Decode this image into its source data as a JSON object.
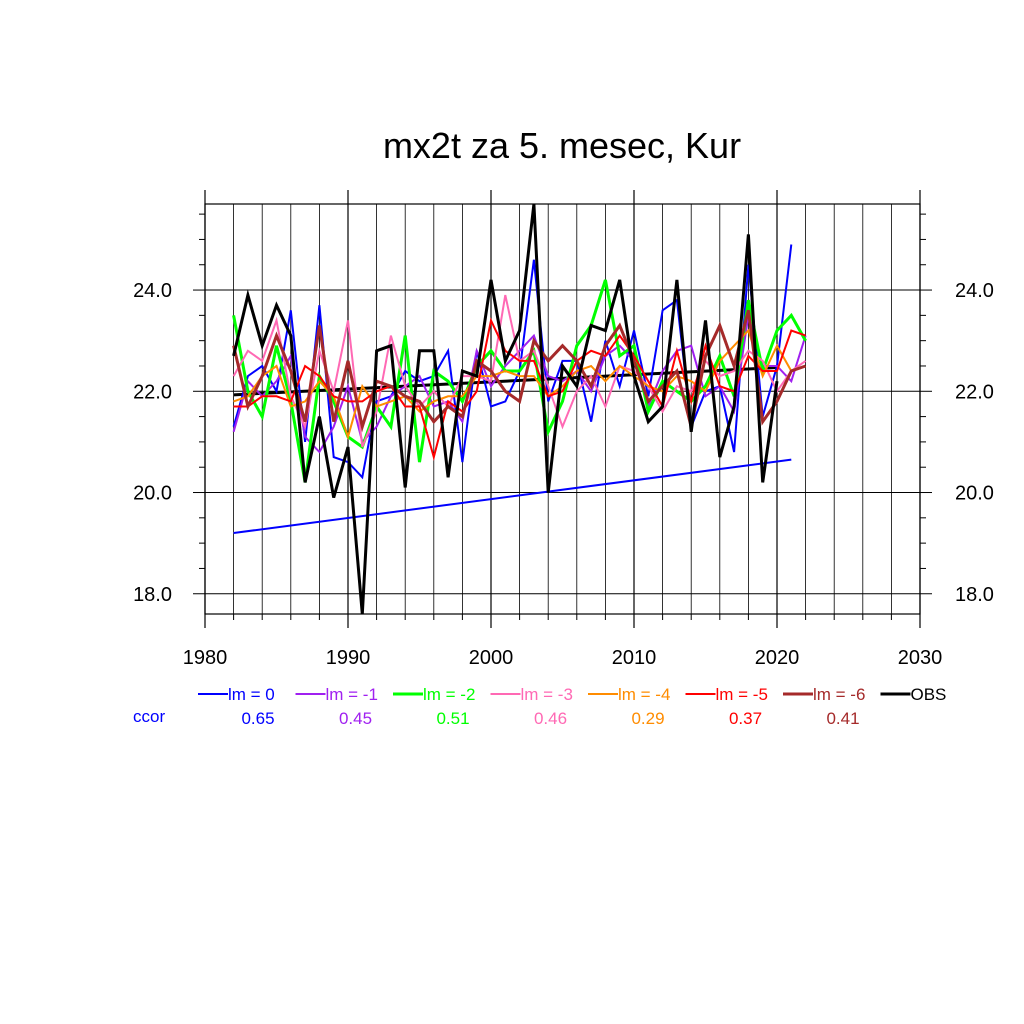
{
  "chart_data": {
    "type": "line",
    "title": "mx2t za 5. mesec, Kur",
    "xlabel": "",
    "ylabel": "",
    "xlim": [
      1980,
      2030
    ],
    "ylim": [
      17.6,
      25.7
    ],
    "x_ticks": [
      1980,
      1990,
      2000,
      2010,
      2020,
      2030
    ],
    "x_tick_labels": [
      "1980",
      "1990",
      "2000",
      "2010",
      "2020",
      "2030"
    ],
    "y_ticks": [
      18,
      20,
      22,
      24
    ],
    "y_tick_labels": [
      "18.0",
      "20.0",
      "22.0",
      "24.0"
    ],
    "grid": true,
    "legend_position": "bottom",
    "ccor_label": "ccor",
    "x": [
      1982,
      1983,
      1984,
      1985,
      1986,
      1987,
      1988,
      1989,
      1990,
      1991,
      1992,
      1993,
      1994,
      1995,
      1996,
      1997,
      1998,
      1999,
      2000,
      2001,
      2002,
      2003,
      2004,
      2005,
      2006,
      2007,
      2008,
      2009,
      2010,
      2011,
      2012,
      2013,
      2014,
      2015,
      2016,
      2017,
      2018,
      2019,
      2020,
      2021,
      2022
    ],
    "series": [
      {
        "name": "lm = 0",
        "color": "#0000ff",
        "width": 2,
        "ccor": "0.65",
        "values": [
          21.3,
          22.3,
          22.5,
          22.0,
          23.6,
          21.0,
          23.7,
          20.7,
          20.6,
          20.3,
          21.8,
          21.9,
          22.4,
          22.2,
          22.3,
          22.8,
          20.6,
          22.8,
          21.7,
          21.8,
          22.4,
          24.6,
          21.8,
          22.6,
          22.6,
          21.4,
          23.0,
          22.1,
          23.2,
          21.9,
          23.6,
          23.8,
          21.3,
          22.0,
          22.1,
          20.8,
          24.5,
          21.5,
          22.5,
          24.9,
          null
        ]
      },
      {
        "name": "lm = -1",
        "color": "#a020f0",
        "width": 2,
        "ccor": "0.45",
        "values": [
          21.2,
          22.2,
          21.9,
          22.2,
          22.7,
          21.1,
          20.8,
          21.3,
          22.1,
          21.0,
          21.3,
          21.9,
          22.1,
          22.3,
          21.7,
          21.8,
          21.4,
          22.8,
          22.1,
          22.5,
          22.8,
          23.1,
          22.3,
          22.2,
          22.4,
          22.0,
          22.7,
          22.9,
          22.6,
          21.7,
          22.4,
          22.8,
          22.9,
          21.9,
          22.1,
          21.6,
          23.5,
          22.5,
          22.5,
          22.2,
          23.1
        ]
      },
      {
        "name": "lm = -2",
        "color": "#00ff00",
        "width": 3,
        "ccor": "0.51",
        "values": [
          23.5,
          22.0,
          21.5,
          22.9,
          21.8,
          20.2,
          22.3,
          21.8,
          21.1,
          20.9,
          21.7,
          21.3,
          23.1,
          20.6,
          22.4,
          22.2,
          21.8,
          22.5,
          22.8,
          22.4,
          22.4,
          22.8,
          21.2,
          21.8,
          22.9,
          23.3,
          24.2,
          22.7,
          22.9,
          21.6,
          22.2,
          22.0,
          21.8,
          22.1,
          22.7,
          21.9,
          23.8,
          22.4,
          23.2,
          23.5,
          23.0
        ]
      },
      {
        "name": "lm = -3",
        "color": "#ff69b4",
        "width": 2,
        "ccor": "0.46",
        "values": [
          22.3,
          22.8,
          22.6,
          23.4,
          21.9,
          21.3,
          22.8,
          22.0,
          23.4,
          20.9,
          21.6,
          23.1,
          22.1,
          21.7,
          22.0,
          21.7,
          22.3,
          22.3,
          22.2,
          23.9,
          22.6,
          22.8,
          22.1,
          21.3,
          22.0,
          22.3,
          21.7,
          22.5,
          22.4,
          22.1,
          21.6,
          22.1,
          22.0,
          22.6,
          22.3,
          22.4,
          22.8,
          22.6,
          22.0,
          22.4,
          22.6
        ]
      },
      {
        "name": "lm = -4",
        "color": "#ff8c00",
        "width": 2,
        "ccor": "0.29",
        "values": [
          21.8,
          21.9,
          22.3,
          22.5,
          21.7,
          21.8,
          22.2,
          21.9,
          21.1,
          22.1,
          21.7,
          21.8,
          21.9,
          21.6,
          21.8,
          21.9,
          21.9,
          22.3,
          22.3,
          22.4,
          22.3,
          22.3,
          21.9,
          22.1,
          22.4,
          22.5,
          22.2,
          22.5,
          22.3,
          22.1,
          22.0,
          22.3,
          22.2,
          22.0,
          22.6,
          22.9,
          23.2,
          22.3,
          22.9,
          22.4,
          22.5
        ]
      },
      {
        "name": "lm = -5",
        "color": "#ff0000",
        "width": 2,
        "ccor": "0.37",
        "values": [
          21.7,
          21.7,
          21.9,
          21.9,
          21.8,
          22.5,
          22.3,
          21.9,
          21.8,
          21.8,
          22.0,
          22.1,
          21.7,
          21.7,
          20.7,
          21.8,
          21.6,
          22.0,
          23.4,
          22.8,
          22.6,
          22.6,
          21.9,
          22.0,
          22.6,
          22.8,
          22.7,
          23.1,
          22.7,
          22.2,
          21.7,
          22.8,
          21.8,
          22.9,
          22.1,
          22.0,
          22.7,
          22.4,
          22.4,
          23.2,
          23.1
        ]
      },
      {
        "name": "lm = -6",
        "color": "#a52a2a",
        "width": 3,
        "ccor": "0.41",
        "values": [
          22.9,
          21.7,
          22.3,
          23.1,
          22.4,
          21.4,
          23.3,
          21.4,
          22.6,
          21.3,
          22.2,
          22.1,
          21.9,
          21.8,
          21.4,
          21.7,
          21.5,
          22.6,
          22.4,
          22.0,
          21.8,
          23.0,
          22.6,
          22.9,
          22.6,
          22.1,
          22.9,
          23.3,
          22.6,
          21.8,
          22.1,
          22.4,
          21.3,
          22.7,
          23.3,
          22.5,
          23.6,
          21.4,
          21.8,
          22.4,
          22.5
        ]
      },
      {
        "name": "OBS",
        "color": "#000000",
        "width": 3,
        "ccor": "",
        "values": [
          22.7,
          23.9,
          22.9,
          23.7,
          23.1,
          20.2,
          21.5,
          19.9,
          20.9,
          17.6,
          22.8,
          22.9,
          20.1,
          22.8,
          22.8,
          20.3,
          22.4,
          22.3,
          24.2,
          22.6,
          23.2,
          25.7,
          20.0,
          22.5,
          22.1,
          23.3,
          23.2,
          24.2,
          22.3,
          21.4,
          21.7,
          24.2,
          21.2,
          23.4,
          20.7,
          21.7,
          25.1,
          20.2,
          22.2,
          null,
          null
        ]
      }
    ],
    "trend_lines": [
      {
        "color": "#0000ff",
        "width": 2,
        "x": [
          1982,
          2021
        ],
        "y": [
          19.2,
          20.65
        ]
      },
      {
        "color": "#000000",
        "width": 3,
        "x": [
          1982,
          2020
        ],
        "y": [
          21.93,
          22.47
        ]
      }
    ]
  }
}
